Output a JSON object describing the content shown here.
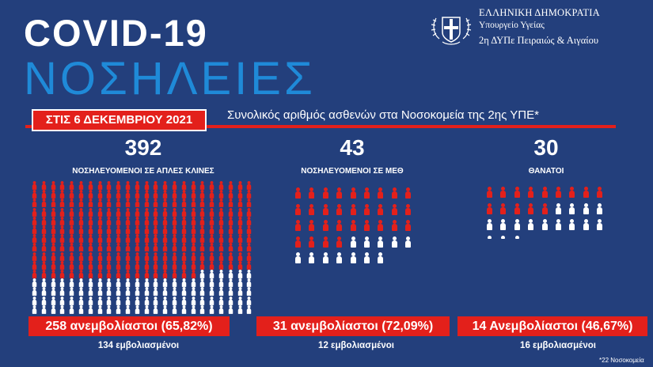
{
  "header": {
    "title": "COVID-19",
    "subtitle": "ΝΟΣΗΛΕΙΕΣ"
  },
  "ministry": {
    "line1": "ΕΛΛΗΝΙΚΗ ΔΗΜΟΚΡΑΤΙΑ",
    "line2": "Υπουργείο Υγείας",
    "line3": "2η ΔΥΠε Πειραιώς & Αιγαίου"
  },
  "date_label": "ΣΤΙΣ 6 ΔΕΚΕΜΒΡΙΟΥ 2021",
  "description": "Συνολικός αριθμός ασθενών στα Νοσοκομεία της 2ης ΥΠΕ*",
  "sections": [
    {
      "count": "392",
      "label": "ΝΟΣΗΛΕΥΟΜΕΝΟΙ ΣΕ ΑΠΛΕΣ ΚΛΙΝΕΣ",
      "unvaccinated": "258 ανεμβολίαστοι (65,82%)",
      "vaccinated": "134 εμβολιασμένοι",
      "icons_red": 258,
      "icons_white": 134
    },
    {
      "count": "43",
      "label": "ΝΟΣΗΛΕΥΟΜΕΝΟΙ ΣΕ ΜΕΘ",
      "unvaccinated": "31 ανεμβολίαστοι (72,09%)",
      "vaccinated": "12 εμβολιασμένοι",
      "icons_red": 31,
      "icons_white": 12
    },
    {
      "count": "30",
      "label": "ΘΑΝΑΤΟΙ",
      "unvaccinated": "14 Ανεμβολίαστοι (46,67%)",
      "vaccinated": "16 εμβολιασμένοι",
      "icons_red": 14,
      "icons_white": 16
    }
  ],
  "footnote": "*22 Νοσοκομεία",
  "colors": {
    "background": "#233f7c",
    "accent_red": "#e3201b",
    "title_blue": "#1f8ad8",
    "white": "#ffffff"
  },
  "icons": {
    "person": "person-icon",
    "emblem": "greek-emblem-icon"
  }
}
